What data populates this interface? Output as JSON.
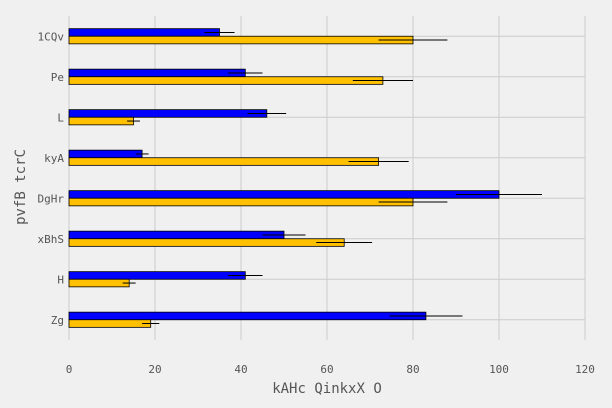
{
  "chart_data": {
    "type": "bar",
    "orientation": "horizontal",
    "categories": [
      "1CQv",
      "Pe",
      "L",
      "kyA",
      "DgHr",
      "xBhS",
      "H",
      "Zg"
    ],
    "series": [
      {
        "values": [
          35,
          41,
          46,
          17,
          100,
          50,
          41,
          83
        ],
        "errors": [
          3.5,
          4,
          4.5,
          1.5,
          10,
          5,
          4,
          8.5
        ],
        "color": "#0000ff"
      },
      {
        "values": [
          80,
          73,
          15,
          72,
          80,
          64,
          14,
          19
        ],
        "errors": [
          8,
          7,
          1.5,
          7,
          8,
          6.5,
          1.5,
          2
        ],
        "color": "#ffc000"
      }
    ],
    "xlabel": "kAHc QinkxX O",
    "ylabel": "pvfB tcrC",
    "xlim": [
      0,
      120
    ],
    "xticks": [
      0,
      20,
      40,
      60,
      80,
      100,
      120
    ],
    "grid": true
  }
}
